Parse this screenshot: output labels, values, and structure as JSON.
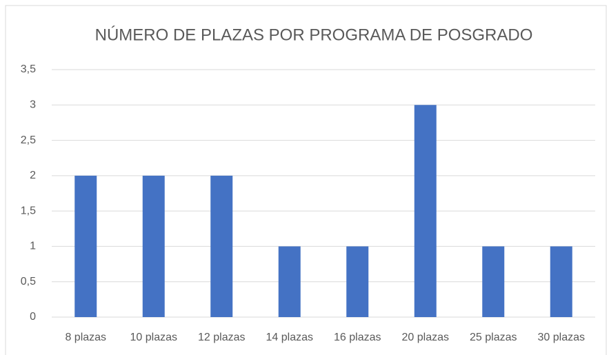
{
  "chart_data": {
    "type": "bar",
    "title": "NÚMERO DE PLAZAS POR PROGRAMA DE POSGRADO",
    "categories": [
      "8 plazas",
      "10 plazas",
      "12 plazas",
      "14 plazas",
      "16 plazas",
      "20 plazas",
      "25 plazas",
      "30 plazas"
    ],
    "values": [
      2,
      2,
      2,
      1,
      1,
      3,
      1,
      1
    ],
    "color": "#4472c4",
    "ylim": [
      0,
      3.5
    ],
    "yticks": [
      0,
      {
        "value": 0.5,
        "label": "0,5"
      },
      1,
      {
        "value": 1.5,
        "label": "1,5"
      },
      2,
      {
        "value": 2.5,
        "label": "2,5"
      },
      3,
      {
        "value": 3.5,
        "label": "3,5"
      }
    ],
    "grid": true
  }
}
